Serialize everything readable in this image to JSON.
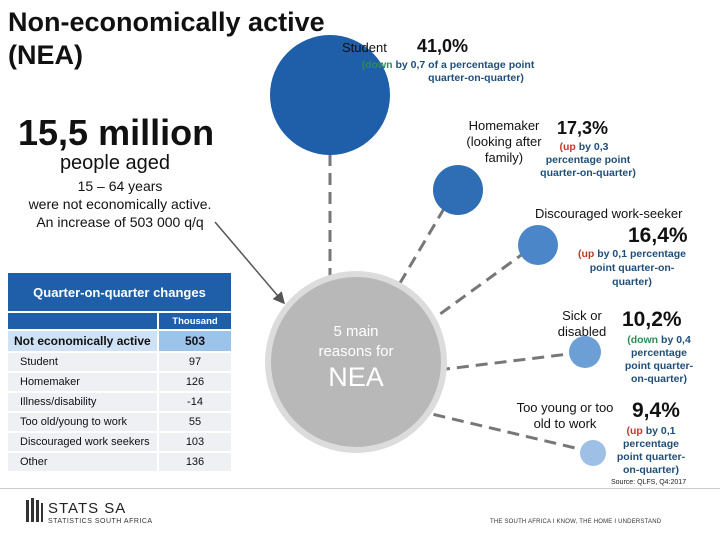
{
  "title": {
    "line1": "Non-economically active",
    "line2": "(NEA)"
  },
  "headline": {
    "number": "15,5 million",
    "people_aged": "people aged",
    "line1": "15 – 64 years",
    "line2": "were not economically active.",
    "line3": "An increase of 503 000 q/q"
  },
  "center": {
    "line1": "5 main",
    "line2": "reasons for",
    "line3": "NEA"
  },
  "reasons": [
    {
      "label_lines": [
        "Student"
      ],
      "percent": "41,0%",
      "direction": "down",
      "change_rest": " by 0,7 of a percentage point",
      "change_line2": "quarter-on-quarter)",
      "color": "#1f5ea8"
    },
    {
      "label_lines": [
        "Homemaker",
        "(looking after",
        "family)"
      ],
      "percent": "17,3%",
      "direction": "up",
      "change_rest": " by 0,3",
      "change_line2": "percentage point",
      "change_line3": "quarter-on-quarter)",
      "color": "#2f6db5"
    },
    {
      "label_lines": [
        "Discouraged work-seeker"
      ],
      "percent": "16,4%",
      "direction": "up",
      "change_rest": " by 0,1 percentage",
      "change_line2": "point quarter-on-",
      "change_line3": "quarter)",
      "color": "#4a86c8"
    },
    {
      "label_lines": [
        "Sick or",
        "disabled"
      ],
      "percent": "10,2%",
      "direction": "down",
      "change_rest": " by 0,4",
      "change_line2": "percentage",
      "change_line3": "point quarter-",
      "change_line4": "on-quarter)",
      "color": "#6b9fd6"
    },
    {
      "label_lines": [
        "Too young or too",
        "old to work"
      ],
      "percent": "9,4%",
      "direction": "up",
      "change_rest": " by 0,1",
      "change_line2": "percentage",
      "change_line3": "point quarter-",
      "change_line4": "on-quarter)",
      "color": "#9ec0e6"
    }
  ],
  "table": {
    "title": "Quarter-on-quarter changes",
    "unit": "Thousand",
    "total": {
      "label": "Not economically active",
      "value": "503"
    },
    "rows": [
      {
        "label": "Student",
        "value": "97"
      },
      {
        "label": "Homemaker",
        "value": "126"
      },
      {
        "label": "Illness/disability",
        "value": "-14"
      },
      {
        "label": "Too old/young to work",
        "value": "55"
      },
      {
        "label": "Discouraged work seekers",
        "value": "103"
      },
      {
        "label": "Other",
        "value": "136"
      }
    ]
  },
  "footer": {
    "logo": "STATS SA",
    "logo_sub": "STATISTICS SOUTH AFRICA",
    "tagline": "THE SOUTH AFRICA I KNOW, THE HOME I UNDERSTAND",
    "source": "Source: QLFS, Q4:2017"
  },
  "colors": {
    "center_circle": "#b8b8b8",
    "connector": "#777777",
    "table_header": "#1f5ea8"
  }
}
